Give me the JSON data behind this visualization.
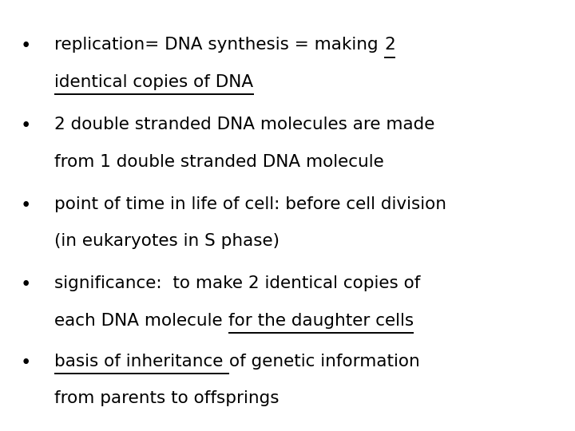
{
  "background_color": "#ffffff",
  "text_color": "#000000",
  "font_size": 15.5,
  "bullet_fx": 0.045,
  "text_fx": 0.095,
  "lines": [
    {
      "fy": 0.895,
      "is_bullet": true,
      "bullet_fy": 0.895,
      "segments": [
        {
          "text": "replication= DNA synthesis = making ",
          "underline": false
        },
        {
          "text": "2",
          "underline": true
        }
      ]
    },
    {
      "fy": 0.79,
      "is_bullet": false,
      "segments": [
        {
          "text": "identical copies of DNA",
          "underline": true
        }
      ]
    },
    {
      "fy": 0.67,
      "is_bullet": true,
      "bullet_fy": 0.67,
      "segments": [
        {
          "text": "2 double stranded DNA molecules are made",
          "underline": false
        }
      ]
    },
    {
      "fy": 0.565,
      "is_bullet": false,
      "segments": [
        {
          "text": "from 1 double stranded DNA molecule",
          "underline": false
        }
      ]
    },
    {
      "fy": 0.445,
      "is_bullet": true,
      "bullet_fy": 0.445,
      "segments": [
        {
          "text": "point of time in life of cell: before cell division",
          "underline": false
        }
      ]
    },
    {
      "fy": 0.34,
      "is_bullet": false,
      "segments": [
        {
          "text": "(in eukaryotes in S phase)",
          "underline": false
        }
      ]
    },
    {
      "fy": 0.22,
      "is_bullet": true,
      "bullet_fy": 0.22,
      "segments": [
        {
          "text": "significance:  to make 2 identical copies of",
          "underline": false
        }
      ]
    },
    {
      "fy": 0.115,
      "is_bullet": false,
      "segments": [
        {
          "text": "each DNA molecule ",
          "underline": false
        },
        {
          "text": "for the daughter cells",
          "underline": true
        }
      ]
    },
    {
      "fy": 0.0,
      "is_bullet": true,
      "bullet_fy": 0.0,
      "segments": [
        {
          "text": "basis of inheritance ",
          "underline": true
        },
        {
          "text": "of genetic information",
          "underline": false
        }
      ]
    },
    {
      "fy": -0.105,
      "is_bullet": false,
      "segments": [
        {
          "text": "from parents to offsprings",
          "underline": false
        }
      ]
    }
  ]
}
